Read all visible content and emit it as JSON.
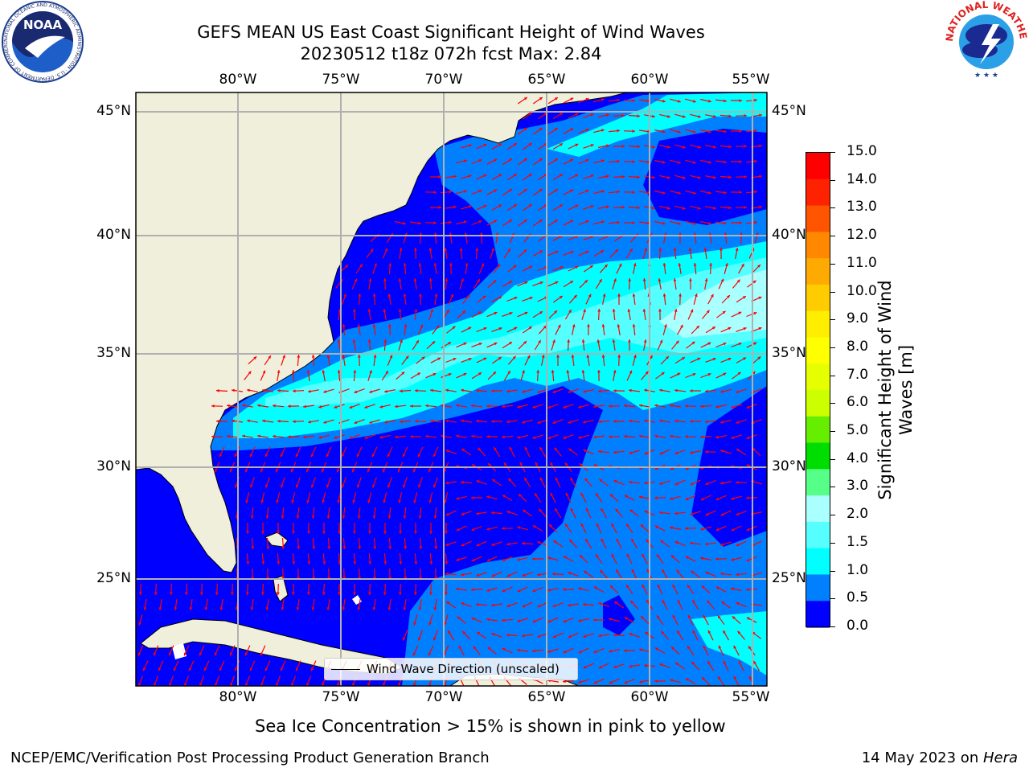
{
  "title": {
    "line1": "GEFS MEAN US East Coast Significant Height of Wind Waves",
    "line2": "20230512 t18z 072h fcst   Max: 2.84"
  },
  "logos": {
    "noaa": {
      "text": "NOAA",
      "ring_text": "NATIONAL OCEANIC AND ATMOSPHERIC ADMINISTRATION · U.S. DEPARTMENT OF COMMERCE"
    },
    "nws": {
      "ring_text": "NATIONAL WEATHER SERVICE"
    }
  },
  "axes": {
    "lon_labels": [
      "80°W",
      "75°W",
      "70°W",
      "65°W",
      "60°W",
      "55°W"
    ],
    "lat_labels": [
      "45°N",
      "40°N",
      "35°N",
      "30°N",
      "25°N"
    ]
  },
  "colorbar": {
    "label": "Significant Height of Wind Waves [m]",
    "label_line1": "Significant Height of Wind",
    "label_line2": "Waves [m]",
    "ticks": [
      "15.0",
      "14.0",
      "13.0",
      "12.0",
      "11.0",
      "10.0",
      "9.0",
      "8.0",
      "7.0",
      "6.0",
      "5.0",
      "4.0",
      "3.0",
      "2.0",
      "1.5",
      "1.0",
      "0.5",
      "0.0"
    ],
    "colors": [
      "#ff0000",
      "#ff2200",
      "#ff5500",
      "#ff8800",
      "#ffaa00",
      "#ffcc00",
      "#ffee00",
      "#ffff00",
      "#e6ff00",
      "#ccff00",
      "#66ee00",
      "#00dd00",
      "#55ff88",
      "#aaffff",
      "#55ffff",
      "#00ffff",
      "#0080ff",
      "#0000ff"
    ]
  },
  "legend": {
    "label": "Wind Wave Direction (unscaled)"
  },
  "caption": "Sea Ice Concentration > 15% is shown in pink to yellow",
  "footer": {
    "left": "NCEP/EMC/Verification Post Processing Product Generation Branch",
    "right_prefix": "14 May 2023 on ",
    "right_host": "Hera"
  },
  "map_colors": {
    "land": "#efefdc",
    "band_0": "#0000ff",
    "band_05": "#0080ff",
    "band_1": "#00ffff",
    "band_15": "#55ffff",
    "band_2": "#aaffff",
    "arrows": "#ff0000",
    "grid": "#b0b0b0"
  }
}
